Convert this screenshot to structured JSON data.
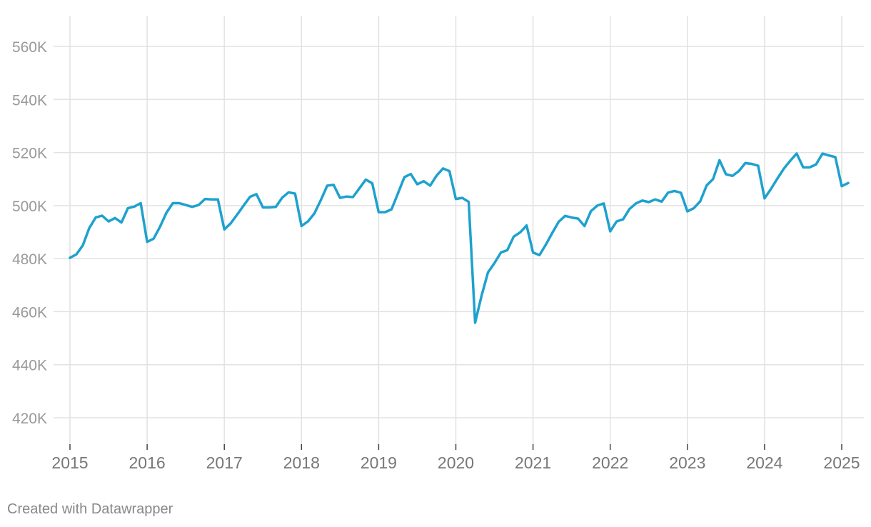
{
  "credit": "Created with Datawrapper",
  "chart_data": {
    "type": "line",
    "title": "",
    "xlabel": "",
    "ylabel": "",
    "grid": true,
    "line_color": "#1ea1ce",
    "grid_color": "#e2e2e2",
    "ylim": [
      410000,
      570000
    ],
    "xlim": [
      2015.0,
      2025.2
    ],
    "yticks": [
      420000,
      440000,
      460000,
      480000,
      500000,
      520000,
      540000,
      560000
    ],
    "ytick_labels": [
      "420K",
      "440K",
      "460K",
      "480K",
      "500K",
      "520K",
      "540K",
      "560K"
    ],
    "xticks": [
      2015,
      2016,
      2017,
      2018,
      2019,
      2020,
      2021,
      2022,
      2023,
      2024,
      2025
    ],
    "xtick_labels": [
      "2015",
      "2016",
      "2017",
      "2018",
      "2019",
      "2020",
      "2021",
      "2022",
      "2023",
      "2024",
      "2025"
    ],
    "series": [
      {
        "start": "2015-01",
        "frequency": "monthly",
        "values": [
          480300,
          481600,
          485000,
          491500,
          495500,
          496200,
          494000,
          495300,
          493600,
          499000,
          499600,
          500900,
          486300,
          487500,
          492000,
          497300,
          500900,
          500900,
          500200,
          499500,
          500200,
          502500,
          502300,
          502300,
          491000,
          493300,
          496600,
          500000,
          503300,
          504300,
          499300,
          499300,
          499500,
          503000,
          505000,
          504500,
          492300,
          494000,
          497000,
          502000,
          507500,
          507800,
          502900,
          503400,
          503200,
          506500,
          509800,
          508400,
          497500,
          497500,
          498600,
          504600,
          510700,
          511900,
          508000,
          509200,
          507500,
          511300,
          514000,
          513000,
          502500,
          502900,
          501400,
          455800,
          466000,
          474800,
          478300,
          482300,
          483200,
          488300,
          489900,
          492500,
          482300,
          481300,
          485300,
          489700,
          493900,
          496100,
          495500,
          495100,
          492300,
          497900,
          500000,
          500800,
          490300,
          494000,
          494800,
          498700,
          500800,
          501900,
          501300,
          502300,
          501500,
          504900,
          505500,
          504800,
          497800,
          499000,
          501600,
          507600,
          510000,
          517100,
          511800,
          511200,
          513000,
          516000,
          515700,
          515000,
          502700,
          506300,
          510200,
          513900,
          516900,
          519600,
          514400,
          514400,
          515500,
          519600,
          518900,
          518300,
          507300,
          508500
        ]
      }
    ]
  }
}
